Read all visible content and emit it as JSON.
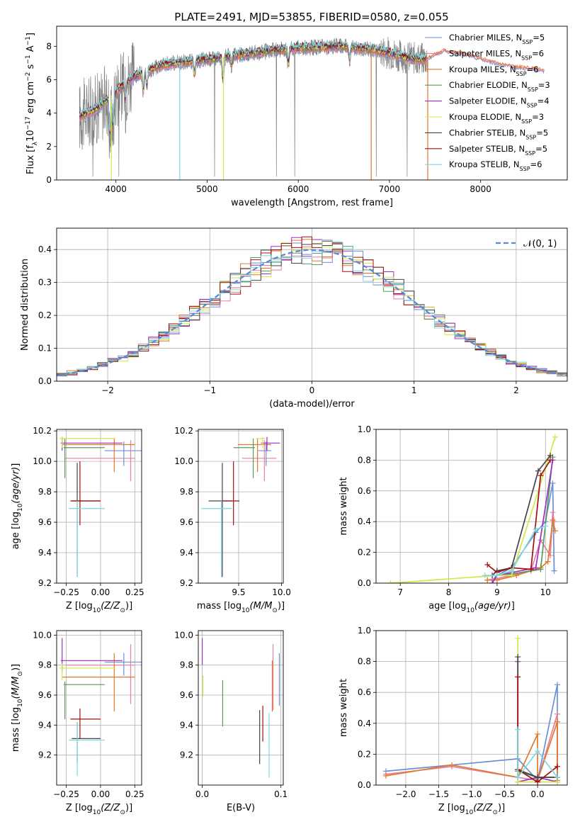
{
  "colors": {
    "chabrier_miles": "#6b8fd6",
    "salpeter_miles": "#e87fa0",
    "kroupa_miles": "#e2782c",
    "chabrier_elodie": "#5a9a5a",
    "salpeter_elodie": "#9b30c8",
    "kroupa_elodie": "#d2e84a",
    "chabrier_stelib": "#444444",
    "salpeter_stelib": "#a01010",
    "kroupa_stelib": "#7fd8e0",
    "data_spectrum": "#808080",
    "normal_curve": "#5b8ad6"
  },
  "chart_data": [
    {
      "type": "line",
      "title": "PLATE=2491, MJD=53855, FIBERID=0580, z=0.055",
      "xlabel": "wavelength [Angstrom, rest frame]",
      "ylabel": "Flux [f",
      "xlim": [
        3350,
        8950
      ],
      "ylim": [
        0,
        9.2
      ],
      "xticks": [
        "4000",
        "5000",
        "6000",
        "7000",
        "8000"
      ],
      "yticks": [
        "0",
        "2",
        "4",
        "6",
        "8"
      ],
      "legend_position": "upper-right",
      "legend": [
        {
          "name": "Chabrier MILES, N",
          "sub": "SSP",
          "tail": "=5",
          "color_key": "chabrier_miles"
        },
        {
          "name": "Salpeter MILES, N",
          "sub": "SSP",
          "tail": "=6",
          "color_key": "salpeter_miles"
        },
        {
          "name": "Kroupa MILES, N",
          "sub": "SSP",
          "tail": "=6",
          "color_key": "kroupa_miles"
        },
        {
          "name": "Chabrier ELODIE, N",
          "sub": "SSP",
          "tail": "=3",
          "color_key": "chabrier_elodie"
        },
        {
          "name": "Salpeter ELODIE, N",
          "sub": "SSP",
          "tail": "=4",
          "color_key": "salpeter_elodie"
        },
        {
          "name": "Kroupa ELODIE, N",
          "sub": "SSP",
          "tail": "=3",
          "color_key": "kroupa_elodie"
        },
        {
          "name": "Chabrier STELIB, N",
          "sub": "SSP",
          "tail": "=5",
          "color_key": "chabrier_stelib"
        },
        {
          "name": "Salpeter STELIB, N",
          "sub": "SSP",
          "tail": "=5",
          "color_key": "salpeter_stelib"
        },
        {
          "name": "Kroupa STELIB, N",
          "sub": "SSP",
          "tail": "=6",
          "color_key": "kroupa_stelib"
        }
      ],
      "continuum": {
        "x": [
          3600,
          3800,
          4000,
          4200,
          4500,
          5000,
          5500,
          6000,
          6500,
          6800,
          7000,
          7200,
          7400
        ],
        "y": [
          3.8,
          4.3,
          5.3,
          6.2,
          6.9,
          7.2,
          7.6,
          7.9,
          8.0,
          7.8,
          7.6,
          7.3,
          7.2
        ]
      },
      "model_continuum": {
        "x": [
          7400,
          7600,
          7800,
          8000,
          8200,
          8400,
          8700
        ],
        "y": [
          7.4,
          7.9,
          7.7,
          7.4,
          7.1,
          6.9,
          6.7
        ]
      }
    },
    {
      "type": "histogram",
      "xlabel": "(data-model)/error",
      "ylabel": "Normed distribution",
      "xlim": [
        -2.5,
        2.5
      ],
      "ylim": [
        0,
        0.465
      ],
      "xticks": [
        "−2",
        "−1",
        "0",
        "1",
        "2"
      ],
      "yticks": [
        "0.0",
        "0.1",
        "0.2",
        "0.3",
        "0.4"
      ],
      "bin_width": 0.1,
      "legend": "𝒩(0, 1)",
      "legend_position": "upper-right",
      "normal_curve": {
        "mean": 0,
        "sigma": 1
      }
    },
    {
      "type": "errorbar",
      "xlabel": "Z [log",
      "ylabel": "age  [log",
      "xlim": [
        -0.32,
        0.3
      ],
      "ylim": [
        9.2,
        10.21
      ],
      "xticks": [
        "−0.25",
        "0.00",
        "0.25"
      ],
      "yticks": [
        "9.2",
        "9.4",
        "9.6",
        "9.8",
        "10.0",
        "10.2"
      ],
      "points": [
        {
          "c": "chabrier_miles",
          "x": 0.17,
          "y": 10.07,
          "xerr": [
            0.14,
            0.14
          ],
          "yerr": [
            0.1,
            0.06
          ]
        },
        {
          "c": "salpeter_miles",
          "x": 0.22,
          "y": 10.02,
          "xerr": [
            0.48,
            0.03
          ],
          "yerr": [
            0.15,
            0.12
          ]
        },
        {
          "c": "kroupa_miles",
          "x": 0.1,
          "y": 10.11,
          "xerr": [
            0.38,
            0.15
          ],
          "yerr": [
            0.18,
            0.04
          ]
        },
        {
          "c": "chabrier_elodie",
          "x": -0.26,
          "y": 10.09,
          "xerr": [
            0.01,
            0.29
          ],
          "yerr": [
            0.2,
            0.06
          ]
        },
        {
          "c": "salpeter_elodie",
          "x": -0.28,
          "y": 10.12,
          "xerr": [
            0.01,
            0.44
          ],
          "yerr": [
            0.05,
            0.04
          ]
        },
        {
          "c": "kroupa_elodie",
          "x": -0.28,
          "y": 10.15,
          "xerr": [
            0.02,
            0.39
          ],
          "yerr": [
            0.06,
            0.01
          ]
        },
        {
          "c": "chabrier_stelib",
          "x": -0.17,
          "y": 9.74,
          "xerr": [
            0.04,
            0.17
          ],
          "yerr": [
            0.5,
            0.25
          ]
        },
        {
          "c": "salpeter_stelib",
          "x": -0.15,
          "y": 9.74,
          "xerr": [
            0.07,
            0.15
          ],
          "yerr": [
            0.16,
            0.26
          ]
        },
        {
          "c": "kroupa_stelib",
          "x": -0.17,
          "y": 9.69,
          "xerr": [
            0.06,
            0.2
          ],
          "yerr": [
            0.45,
            0.05
          ]
        }
      ]
    },
    {
      "type": "errorbar",
      "xlabel": "mass [log",
      "ylabel": "",
      "xlim": [
        9.03,
        10.02
      ],
      "ylim": [
        9.2,
        10.21
      ],
      "xticks": [
        "9.5",
        "10.0"
      ],
      "yticks": [
        "9.2",
        "9.4",
        "9.6",
        "9.8",
        "10.0",
        "10.2"
      ],
      "points": [
        {
          "c": "chabrier_miles",
          "x": 9.82,
          "y": 10.07,
          "xerr": [
            0.09,
            0.06
          ],
          "yerr": [
            0.1,
            0.06
          ]
        },
        {
          "c": "salpeter_miles",
          "x": 9.8,
          "y": 10.02,
          "xerr": [
            0.26,
            0.14
          ],
          "yerr": [
            0.15,
            0.12
          ]
        },
        {
          "c": "kroupa_miles",
          "x": 9.72,
          "y": 10.11,
          "xerr": [
            0.23,
            0.16
          ],
          "yerr": [
            0.18,
            0.04
          ]
        },
        {
          "c": "chabrier_elodie",
          "x": 9.67,
          "y": 10.09,
          "xerr": [
            0.23,
            0.02
          ],
          "yerr": [
            0.2,
            0.06
          ]
        },
        {
          "c": "salpeter_elodie",
          "x": 9.83,
          "y": 10.12,
          "xerr": [
            0.07,
            0.15
          ],
          "yerr": [
            0.05,
            0.04
          ]
        },
        {
          "c": "kroupa_elodie",
          "x": 9.78,
          "y": 10.15,
          "xerr": [
            0.08,
            0.03
          ],
          "yerr": [
            0.06,
            0.01
          ]
        },
        {
          "c": "chabrier_stelib",
          "x": 9.31,
          "y": 9.74,
          "xerr": [
            0.16,
            0.11
          ],
          "yerr": [
            0.5,
            0.25
          ]
        },
        {
          "c": "salpeter_stelib",
          "x": 9.44,
          "y": 9.74,
          "xerr": [
            0.13,
            0.07
          ],
          "yerr": [
            0.16,
            0.26
          ]
        },
        {
          "c": "kroupa_stelib",
          "x": 9.3,
          "y": 9.69,
          "xerr": [
            0.24,
            0.12
          ],
          "yerr": [
            0.45,
            0.05
          ]
        }
      ]
    },
    {
      "type": "line",
      "xlabel": "age  [log",
      "ylabel": "mass weight",
      "xlim": [
        6.5,
        10.45
      ],
      "ylim": [
        0,
        1.0
      ],
      "xticks": [
        "7",
        "8",
        "9",
        "10"
      ],
      "yticks": [
        "0.0",
        "0.2",
        "0.4",
        "0.6",
        "0.8",
        "1.0"
      ],
      "series": [
        {
          "c": "chabrier_miles",
          "x": [
            8.9,
            9.0,
            9.3,
            9.8,
            10.0,
            10.15,
            10.18
          ],
          "y": [
            0.02,
            0.05,
            0.1,
            0.33,
            0.4,
            0.65,
            0.08
          ]
        },
        {
          "c": "salpeter_miles",
          "x": [
            8.8,
            9.0,
            9.3,
            9.7,
            9.9,
            10.1,
            10.15,
            10.18
          ],
          "y": [
            0.02,
            0.03,
            0.05,
            0.08,
            0.28,
            0.18,
            0.46,
            0.4
          ]
        },
        {
          "c": "kroupa_miles",
          "x": [
            8.8,
            9.0,
            9.4,
            9.9,
            10.05,
            10.15,
            10.2
          ],
          "y": [
            0.02,
            0.02,
            0.05,
            0.1,
            0.14,
            0.41,
            0.34
          ]
        },
        {
          "c": "chabrier_elodie",
          "x": [
            9.0,
            9.3,
            9.9,
            10.15
          ],
          "y": [
            0.05,
            0.06,
            0.09,
            0.82
          ]
        },
        {
          "c": "salpeter_elodie",
          "x": [
            8.9,
            9.0,
            9.8,
            10.15
          ],
          "y": [
            0.0,
            0.05,
            0.1,
            0.8
          ]
        },
        {
          "c": "kroupa_elodie",
          "x": [
            6.8,
            9.0,
            9.3,
            10.2
          ],
          "y": [
            0.0,
            0.05,
            0.05,
            0.95
          ]
        },
        {
          "c": "chabrier_stelib",
          "x": [
            8.9,
            9.0,
            9.3,
            9.85,
            10.1
          ],
          "y": [
            0.05,
            0.08,
            0.1,
            0.73,
            0.83
          ]
        },
        {
          "c": "salpeter_stelib",
          "x": [
            8.8,
            9.0,
            9.3,
            9.7,
            9.9,
            10.1
          ],
          "y": [
            0.12,
            0.07,
            0.1,
            0.09,
            0.7,
            0.8
          ]
        },
        {
          "c": "kroupa_stelib",
          "x": [
            8.75,
            9.0,
            9.3,
            9.8,
            10.0
          ],
          "y": [
            0.05,
            0.05,
            0.08,
            0.35,
            0.37
          ]
        }
      ]
    },
    {
      "type": "errorbar",
      "xlabel": "Z [log",
      "ylabel": "mass [log",
      "xlim": [
        -0.32,
        0.3
      ],
      "ylim": [
        9.0,
        10.03
      ],
      "xticks": [
        "−0.25",
        "0.00",
        "0.25"
      ],
      "yticks": [
        "9.2",
        "9.4",
        "9.6",
        "9.8",
        "10.0"
      ],
      "points": [
        {
          "c": "chabrier_miles",
          "x": 0.17,
          "y": 9.82,
          "xerr": [
            0.14,
            0.14
          ],
          "yerr": [
            0.09,
            0.06
          ]
        },
        {
          "c": "salpeter_miles",
          "x": 0.22,
          "y": 9.8,
          "xerr": [
            0.48,
            0.03
          ],
          "yerr": [
            0.26,
            0.14
          ]
        },
        {
          "c": "kroupa_miles",
          "x": 0.1,
          "y": 9.72,
          "xerr": [
            0.38,
            0.15
          ],
          "yerr": [
            0.23,
            0.16
          ]
        },
        {
          "c": "chabrier_elodie",
          "x": -0.26,
          "y": 9.67,
          "xerr": [
            0.01,
            0.29
          ],
          "yerr": [
            0.23,
            0.02
          ]
        },
        {
          "c": "salpeter_elodie",
          "x": -0.28,
          "y": 9.83,
          "xerr": [
            0.01,
            0.44
          ],
          "yerr": [
            0.07,
            0.15
          ]
        },
        {
          "c": "kroupa_elodie",
          "x": -0.28,
          "y": 9.78,
          "xerr": [
            0.02,
            0.39
          ],
          "yerr": [
            0.08,
            0.03
          ]
        },
        {
          "c": "chabrier_stelib",
          "x": -0.17,
          "y": 9.31,
          "xerr": [
            0.04,
            0.17
          ],
          "yerr": [
            0.16,
            0.11
          ]
        },
        {
          "c": "salpeter_stelib",
          "x": -0.15,
          "y": 9.44,
          "xerr": [
            0.07,
            0.15
          ],
          "yerr": [
            0.13,
            0.07
          ]
        },
        {
          "c": "kroupa_stelib",
          "x": -0.17,
          "y": 9.3,
          "xerr": [
            0.06,
            0.2
          ],
          "yerr": [
            0.24,
            0.12
          ]
        }
      ]
    },
    {
      "type": "errorbar",
      "xlabel": "E(B-V)",
      "ylabel": "",
      "xlim": [
        -0.005,
        0.103
      ],
      "ylim": [
        9.0,
        10.03
      ],
      "xticks": [
        "0.0",
        "0.1"
      ],
      "yticks": [
        "9.2",
        "9.4",
        "9.6",
        "9.8",
        "10.0"
      ],
      "points": [
        {
          "c": "chabrier_miles",
          "x": 0.098,
          "y": 9.71,
          "yerr": [
            0.18,
            0.17
          ]
        },
        {
          "c": "salpeter_miles",
          "x": 0.09,
          "y": 9.65,
          "yerr": [
            0.15,
            0.29
          ]
        },
        {
          "c": "kroupa_miles",
          "x": 0.089,
          "y": 9.66,
          "yerr": [
            0.17,
            0.17
          ]
        },
        {
          "c": "chabrier_elodie",
          "x": 0.026,
          "y": 9.55,
          "yerr": [
            0.16,
            0.15
          ]
        },
        {
          "c": "salpeter_elodie",
          "x": 0.0,
          "y": 9.86,
          "yerr": [
            0.06,
            0.12
          ]
        },
        {
          "c": "kroupa_elodie",
          "x": 0.001,
          "y": 9.65,
          "yerr": [
            0.06,
            0.08
          ]
        },
        {
          "c": "chabrier_stelib",
          "x": 0.073,
          "y": 9.33,
          "yerr": [
            0.19,
            0.17
          ]
        },
        {
          "c": "salpeter_stelib",
          "x": 0.077,
          "y": 9.4,
          "yerr": [
            0.11,
            0.13
          ]
        },
        {
          "c": "kroupa_stelib",
          "x": 0.085,
          "y": 9.25,
          "yerr": [
            0.2,
            0.23
          ]
        }
      ]
    },
    {
      "type": "line",
      "xlabel": "Z [log",
      "ylabel": "mass weight",
      "xlim": [
        -2.45,
        0.45
      ],
      "ylim": [
        0,
        1.0
      ],
      "xticks": [
        "−2.0",
        "−1.5",
        "−1.0",
        "−0.5",
        "0.0"
      ],
      "yticks": [
        "0.0",
        "0.2",
        "0.4",
        "0.6",
        "0.8",
        "1.0"
      ],
      "series": [
        {
          "c": "chabrier_miles",
          "x": [
            -2.3,
            -0.3,
            0.0,
            0.3,
            0.3
          ],
          "y": [
            0.09,
            0.17,
            0.03,
            0.65,
            0.05
          ]
        },
        {
          "c": "salpeter_miles",
          "x": [
            -2.3,
            -1.3,
            -0.3,
            0.0,
            0.3,
            0.3
          ],
          "y": [
            0.07,
            0.12,
            0.05,
            0.03,
            0.46,
            0.05
          ]
        },
        {
          "c": "kroupa_miles",
          "x": [
            -2.3,
            -1.3,
            -0.3,
            0.0,
            0.0,
            0.3,
            0.3
          ],
          "y": [
            0.06,
            0.13,
            0.05,
            0.33,
            0.03,
            0.41,
            0.03
          ]
        },
        {
          "c": "chabrier_elodie",
          "x": [
            -0.3,
            0.0,
            0.3
          ],
          "y": [
            0.09,
            0.05,
            0.05
          ]
        },
        {
          "c": "salpeter_elodie",
          "x": [
            -0.3,
            -0.3,
            0.0,
            0.3
          ],
          "y": [
            0.8,
            0.02,
            0.05,
            0.02
          ]
        },
        {
          "c": "kroupa_elodie",
          "x": [
            -0.3,
            -0.3,
            0.3
          ],
          "y": [
            0.95,
            0.02,
            0.02
          ]
        },
        {
          "c": "chabrier_stelib",
          "x": [
            -0.3,
            -0.3,
            0.0,
            0.3
          ],
          "y": [
            0.83,
            0.1,
            0.05,
            0.05
          ]
        },
        {
          "c": "salpeter_stelib",
          "x": [
            -0.3,
            -0.3,
            0.0,
            0.3
          ],
          "y": [
            0.7,
            0.1,
            0.02,
            0.12
          ]
        },
        {
          "c": "kroupa_stelib",
          "x": [
            -0.3,
            -0.3,
            0.0,
            0.3
          ],
          "y": [
            0.36,
            0.05,
            0.22,
            0.05
          ]
        }
      ]
    }
  ]
}
